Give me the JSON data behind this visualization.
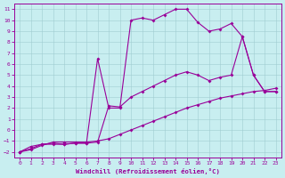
{
  "bg_color": "#c8eef0",
  "line_color": "#990099",
  "xlabel": "Windchill (Refroidissement éolien,°C)",
  "xlim": [
    -0.5,
    23.5
  ],
  "ylim": [
    -2.5,
    11.5
  ],
  "xticks": [
    0,
    1,
    2,
    3,
    4,
    5,
    6,
    7,
    8,
    9,
    10,
    11,
    12,
    13,
    14,
    15,
    16,
    17,
    18,
    19,
    20,
    21,
    22,
    23
  ],
  "yticks": [
    -2,
    -1,
    0,
    1,
    2,
    3,
    4,
    5,
    6,
    7,
    8,
    9,
    10,
    11
  ],
  "curve_bottom_x": [
    0,
    1,
    2,
    3,
    4,
    5,
    6,
    7,
    8,
    9,
    10,
    11,
    12,
    13,
    14,
    15,
    16,
    17,
    18,
    19,
    20,
    21,
    22,
    23
  ],
  "curve_bottom_y": [
    -2,
    -1.8,
    -1.4,
    -1.1,
    -1.1,
    -1.1,
    -1.1,
    -1.0,
    -0.8,
    -0.4,
    0.0,
    0.4,
    0.8,
    1.2,
    1.6,
    2.0,
    2.3,
    2.6,
    2.9,
    3.1,
    3.3,
    3.5,
    3.6,
    3.8
  ],
  "curve_mid_x": [
    0,
    1,
    2,
    3,
    4,
    5,
    6,
    7,
    8,
    9,
    10,
    11,
    12,
    13,
    14,
    15,
    16,
    17,
    18,
    19,
    20,
    21,
    22,
    23
  ],
  "curve_mid_y": [
    -2,
    -1.5,
    -1.3,
    -1.3,
    -1.3,
    -1.2,
    -1.2,
    -1.1,
    2.2,
    2.1,
    3.0,
    3.5,
    4.0,
    4.5,
    5.0,
    5.3,
    5.0,
    4.5,
    4.8,
    5.0,
    8.5,
    5.0,
    3.5,
    3.5
  ],
  "curve_top_x": [
    0,
    1,
    2,
    3,
    4,
    5,
    6,
    7,
    8,
    9,
    10,
    11,
    12,
    13,
    14,
    15,
    16,
    17,
    18,
    19,
    20,
    21,
    22,
    23
  ],
  "curve_top_y": [
    -2,
    -1.7,
    -1.3,
    -1.2,
    -1.3,
    -1.2,
    -1.2,
    6.5,
    2.0,
    2.0,
    10.0,
    10.2,
    10.0,
    10.5,
    11.0,
    11.0,
    9.8,
    9.0,
    9.2,
    9.7,
    8.5,
    5.0,
    3.5,
    3.5
  ]
}
